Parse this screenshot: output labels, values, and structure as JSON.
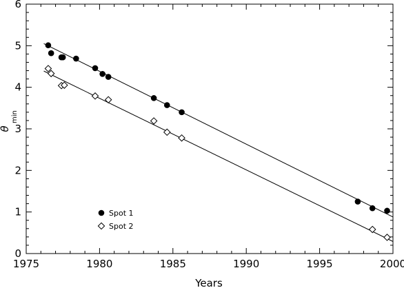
{
  "chart_data": {
    "type": "scatter",
    "xlabel": "Years",
    "ylabel": "θ",
    "ylabel_sub": "min",
    "xlim": [
      1975,
      2000
    ],
    "ylim": [
      0,
      6
    ],
    "xticks": [
      1975,
      1980,
      1985,
      1990,
      1995,
      2000
    ],
    "yticks": [
      0,
      1,
      2,
      3,
      4,
      5,
      6
    ],
    "grid": false,
    "legend_position": "lower-left",
    "series": [
      {
        "name": "Spot 1",
        "marker": "filled-circle",
        "color": "#000000",
        "x": [
          1976.5,
          1976.7,
          1977.4,
          1977.5,
          1978.4,
          1979.7,
          1980.2,
          1980.6,
          1983.7,
          1984.6,
          1985.6,
          1997.6,
          1998.6,
          1999.6
        ],
        "y": [
          5.01,
          4.82,
          4.72,
          4.72,
          4.69,
          4.46,
          4.32,
          4.25,
          3.74,
          3.57,
          3.4,
          1.25,
          1.09,
          1.03
        ],
        "fit": {
          "x": [
            1976.2,
            2000
          ],
          "y": [
            5.05,
            0.88
          ]
        }
      },
      {
        "name": "Spot 2",
        "marker": "open-diamond",
        "color": "#000000",
        "x": [
          1976.5,
          1976.7,
          1977.4,
          1977.6,
          1979.7,
          1980.6,
          1983.7,
          1984.6,
          1985.6,
          1998.6,
          1999.6
        ],
        "y": [
          4.45,
          4.33,
          4.04,
          4.05,
          3.79,
          3.7,
          3.19,
          2.92,
          2.78,
          0.58,
          0.39
        ],
        "fit": {
          "x": [
            1976.2,
            2000
          ],
          "y": [
            4.39,
            0.29
          ]
        }
      }
    ],
    "legend": [
      {
        "label": "Spot 1",
        "marker": "filled-circle"
      },
      {
        "label": "Spot 2",
        "marker": "open-diamond"
      }
    ]
  }
}
